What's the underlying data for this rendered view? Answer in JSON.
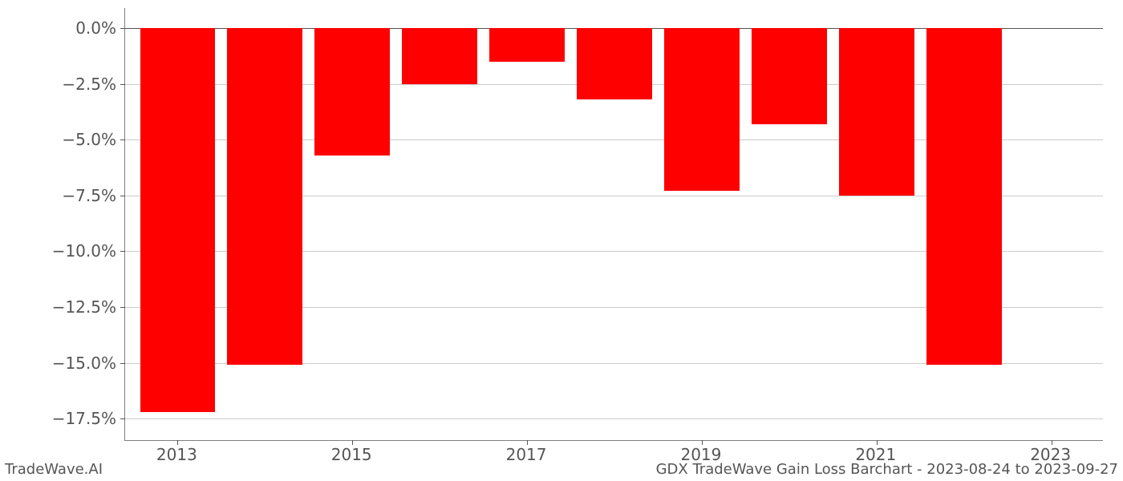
{
  "chart": {
    "type": "bar",
    "background_color": "#ffffff",
    "grid_color": "#cccccc",
    "zero_line_color": "#555555",
    "axis_color": "#808080",
    "tick_label_color": "#555555",
    "tick_fontsize": 20,
    "bar_color": "#ff0000",
    "bar_width_ratio": 0.86,
    "ylim": [
      -18.5,
      0.9
    ],
    "yticks": [
      {
        "value": 0.0,
        "label": "0.0%"
      },
      {
        "value": -2.5,
        "label": "−2.5%"
      },
      {
        "value": -5.0,
        "label": "−5.0%"
      },
      {
        "value": -7.5,
        "label": "−7.5%"
      },
      {
        "value": -10.0,
        "label": "−10.0%"
      },
      {
        "value": -12.5,
        "label": "−12.5%"
      },
      {
        "value": -15.0,
        "label": "−15.0%"
      },
      {
        "value": -17.5,
        "label": "−17.5%"
      }
    ],
    "xticks": [
      {
        "index": 0,
        "label": "2013"
      },
      {
        "index": 2,
        "label": "2015"
      },
      {
        "index": 4,
        "label": "2017"
      },
      {
        "index": 6,
        "label": "2019"
      },
      {
        "index": 8,
        "label": "2021"
      },
      {
        "index": 10,
        "label": "2023"
      }
    ],
    "categories": [
      "2013",
      "2014",
      "2015",
      "2016",
      "2017",
      "2018",
      "2019",
      "2020",
      "2021",
      "2022",
      "2023"
    ],
    "values": [
      -17.2,
      -15.1,
      -5.7,
      -2.5,
      -1.5,
      -3.2,
      -7.3,
      -4.3,
      -7.5,
      -15.1,
      null
    ]
  },
  "footer": {
    "left": "TradeWave.AI",
    "right": "GDX TradeWave Gain Loss Barchart - 2023-08-24 to 2023-09-27"
  }
}
